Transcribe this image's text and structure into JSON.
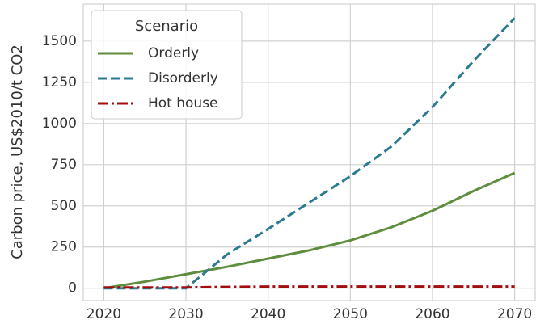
{
  "chart_data": {
    "type": "line",
    "ylabel": "Carbon price, US$2010/t CO2",
    "legend_title": "Scenario",
    "legend": "upper left",
    "grid": true,
    "x": [
      2020,
      2025,
      2030,
      2035,
      2040,
      2045,
      2050,
      2055,
      2060,
      2065,
      2070
    ],
    "series": [
      {
        "name": "Orderly",
        "color": "#5f8d3e",
        "linestyle": "solid",
        "values": [
          0,
          40,
          85,
          130,
          180,
          230,
          290,
          370,
          470,
          590,
          700
        ]
      },
      {
        "name": "Disorderly",
        "color": "#2b7a90",
        "linestyle": "dashed",
        "values": [
          0,
          0,
          0,
          205,
          360,
          520,
          680,
          860,
          1100,
          1380,
          1640
        ]
      },
      {
        "name": "Hot house",
        "color": "#a30d0d",
        "linestyle": "dashdot",
        "values": [
          5,
          5,
          5,
          8,
          10,
          10,
          10,
          10,
          10,
          10,
          10
        ]
      }
    ],
    "xlim": [
      2017.5,
      2072.5
    ],
    "xticks": [
      2020,
      2030,
      2040,
      2050,
      2060,
      2070
    ],
    "ylim": [
      -75,
      1725
    ],
    "yticks": [
      0,
      250,
      500,
      750,
      1000,
      1250,
      1500
    ]
  }
}
